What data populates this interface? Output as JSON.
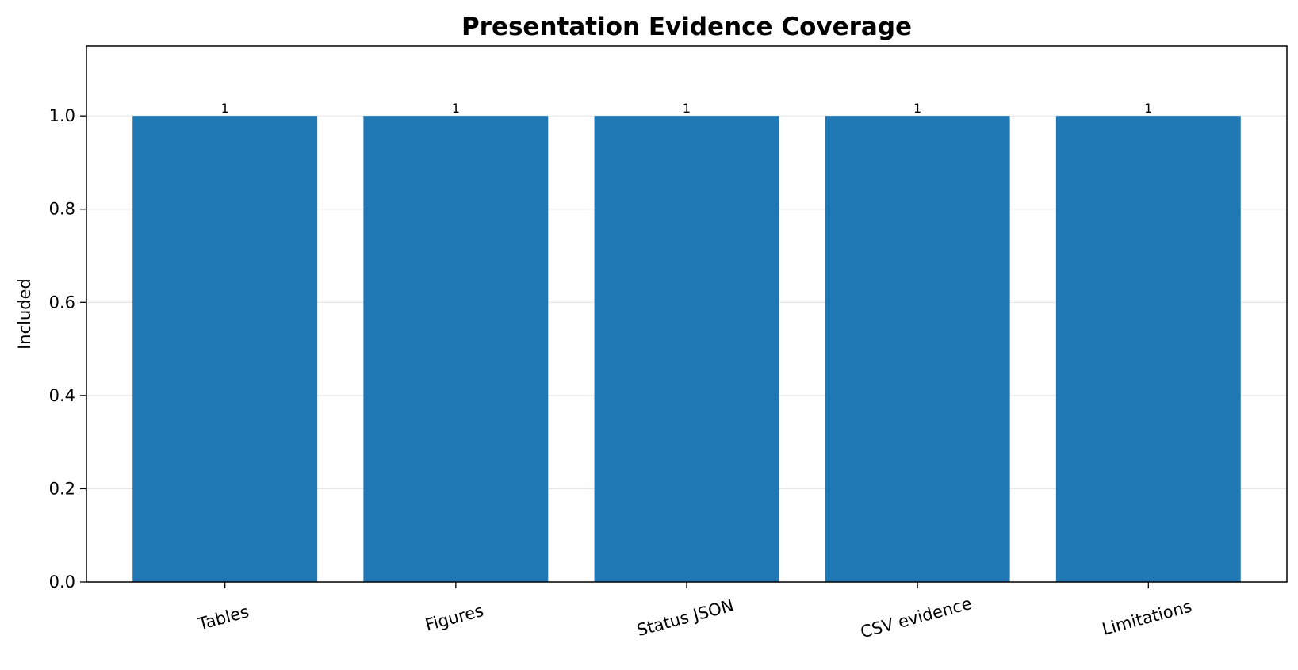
{
  "chart_data": {
    "type": "bar",
    "title": "Presentation Evidence Coverage",
    "xlabel": "",
    "ylabel": "Included",
    "categories": [
      "Tables",
      "Figures",
      "Status JSON",
      "CSV evidence",
      "Limitations"
    ],
    "values": [
      1,
      1,
      1,
      1,
      1
    ],
    "data_labels": [
      "1",
      "1",
      "1",
      "1",
      "1"
    ],
    "ylim": [
      0,
      1.15
    ],
    "yticks": [
      0.0,
      0.2,
      0.4,
      0.6,
      0.8,
      1.0
    ],
    "ytick_labels": [
      "0.0",
      "0.2",
      "0.4",
      "0.6",
      "0.8",
      "1.0"
    ],
    "x_tick_rotation_deg": 15,
    "grid": "y-axis, light",
    "legend": "none",
    "bar_color": "#1f77b4",
    "grid_color": "#e6e6e6"
  }
}
